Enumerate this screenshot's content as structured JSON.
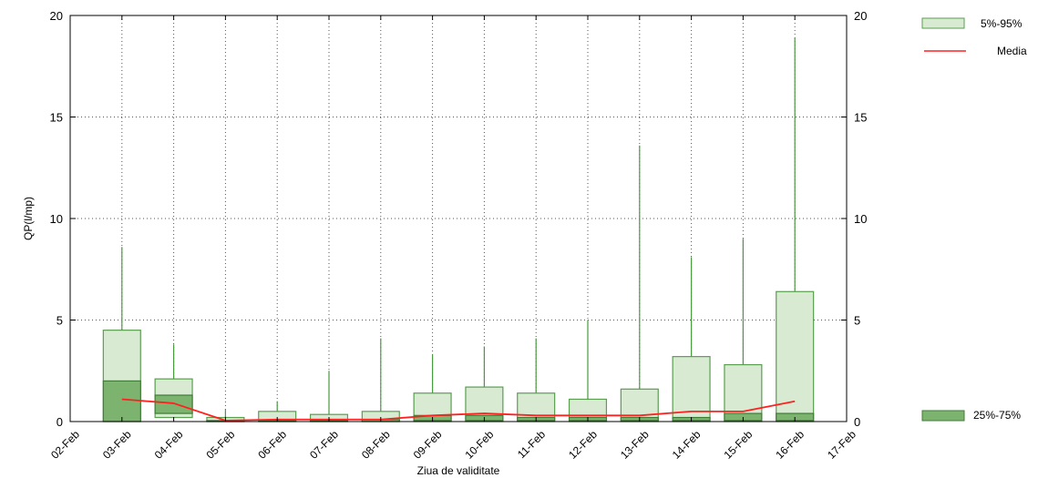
{
  "chart_data": {
    "type": "box",
    "title": "",
    "xlabel": "Ziua de validitate",
    "ylabel": "QP(l/mp)",
    "ylim": [
      0,
      20
    ],
    "y_ticks": [
      "0",
      "5",
      "10",
      "15",
      "20"
    ],
    "x_ticks": [
      "02-Feb",
      "03-Feb",
      "04-Feb",
      "05-Feb",
      "06-Feb",
      "07-Feb",
      "08-Feb",
      "09-Feb",
      "10-Feb",
      "11-Feb",
      "12-Feb",
      "13-Feb",
      "14-Feb",
      "15-Feb",
      "16-Feb",
      "17-Feb"
    ],
    "grid": true,
    "legend": [
      {
        "label": "5%-95%",
        "placement": "top-right"
      },
      {
        "label": "Media",
        "placement": "top-right"
      },
      {
        "label": "25%-75%",
        "placement": "bottom-right"
      }
    ],
    "colors": {
      "box_95": "#d9ead3",
      "box_95_edge": "#5a9e4f",
      "box_75": "#7cb36f",
      "box_75_edge": "#3f7d37",
      "whisker": "#4a9a40",
      "mean": "#ff2020"
    },
    "boxes": [
      {
        "day": "03-Feb",
        "p5": 0,
        "p25": 0,
        "p75": 2.0,
        "p95": 4.5,
        "max": 8.6,
        "mean": 1.1
      },
      {
        "day": "04-Feb",
        "p5": 0.2,
        "p25": 0.4,
        "p75": 1.3,
        "p95": 2.1,
        "max": 3.8,
        "mean": 0.9
      },
      {
        "day": "05-Feb",
        "p5": 0,
        "p25": 0,
        "p75": 0.05,
        "p95": 0.2,
        "max": 0.6,
        "mean": 0.05
      },
      {
        "day": "06-Feb",
        "p5": 0,
        "p25": 0,
        "p75": 0.05,
        "p95": 0.5,
        "max": 1.0,
        "mean": 0.1
      },
      {
        "day": "07-Feb",
        "p5": 0,
        "p25": 0,
        "p75": 0.05,
        "p95": 0.35,
        "max": 2.5,
        "mean": 0.1
      },
      {
        "day": "08-Feb",
        "p5": 0,
        "p25": 0,
        "p75": 0.1,
        "p95": 0.5,
        "max": 4.1,
        "mean": 0.1
      },
      {
        "day": "09-Feb",
        "p5": 0,
        "p25": 0.05,
        "p75": 0.3,
        "p95": 1.4,
        "max": 3.3,
        "mean": 0.3
      },
      {
        "day": "10-Feb",
        "p5": 0,
        "p25": 0.05,
        "p75": 0.3,
        "p95": 1.7,
        "max": 3.7,
        "mean": 0.4
      },
      {
        "day": "11-Feb",
        "p5": 0,
        "p25": 0.05,
        "p75": 0.2,
        "p95": 1.4,
        "max": 4.1,
        "mean": 0.3
      },
      {
        "day": "12-Feb",
        "p5": 0,
        "p25": 0.05,
        "p75": 0.2,
        "p95": 1.1,
        "max": 5.0,
        "mean": 0.3
      },
      {
        "day": "13-Feb",
        "p5": 0,
        "p25": 0.05,
        "p75": 0.2,
        "p95": 1.6,
        "max": 13.6,
        "mean": 0.3
      },
      {
        "day": "14-Feb",
        "p5": 0,
        "p25": 0.05,
        "p75": 0.2,
        "p95": 3.2,
        "max": 8.1,
        "mean": 0.5
      },
      {
        "day": "15-Feb",
        "p5": 0,
        "p25": 0.05,
        "p75": 0.4,
        "p95": 2.8,
        "max": 9.0,
        "mean": 0.5
      },
      {
        "day": "16-Feb",
        "p5": 0,
        "p25": 0.05,
        "p75": 0.4,
        "p95": 6.4,
        "max": 18.9,
        "mean": 1.0
      }
    ]
  }
}
